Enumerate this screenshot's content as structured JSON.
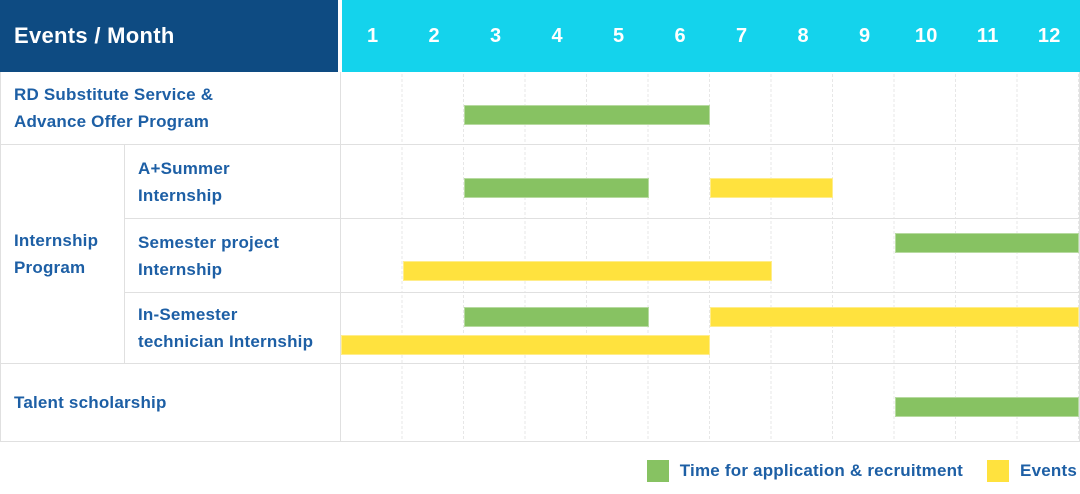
{
  "header": {
    "title": "Events / Month",
    "months": [
      "1",
      "2",
      "3",
      "4",
      "5",
      "6",
      "7",
      "8",
      "9",
      "10",
      "11",
      "12"
    ]
  },
  "colors": {
    "header_bg": "#0e4b82",
    "months_bg": "#14d3ec",
    "application": "#87c262",
    "event": "#ffe23e",
    "label_text": "#1d5fa5",
    "header_text": "#ffffff"
  },
  "legend": {
    "items": [
      {
        "kind": "application",
        "label": "Time for application & recruitment"
      },
      {
        "kind": "event",
        "label": "Events"
      }
    ]
  },
  "chart_data": {
    "type": "gantt",
    "x_axis": {
      "label": "Month",
      "ticks": [
        "1",
        "2",
        "3",
        "4",
        "5",
        "6",
        "7",
        "8",
        "9",
        "10",
        "11",
        "12"
      ],
      "range": [
        1,
        12
      ]
    },
    "legend": {
      "application": "Time for application & recruitment",
      "event": "Events"
    },
    "group_label": "Internship Program",
    "group_label_lines": [
      "Internship",
      "Program"
    ],
    "rows": [
      {
        "label": "RD Substitute Service & Advance Offer Program",
        "label_lines": [
          "RD Substitute Service &",
          "Advance Offer Program"
        ],
        "group": null,
        "bars": [
          {
            "kind": "application",
            "start": 3,
            "end": 6,
            "lane": "single"
          }
        ]
      },
      {
        "label": "A+Summer Internship",
        "label_lines": [
          "A+Summer",
          "Internship"
        ],
        "group": "Internship Program",
        "bars": [
          {
            "kind": "application",
            "start": 3,
            "end": 5,
            "lane": "single"
          },
          {
            "kind": "event",
            "start": 7,
            "end": 8,
            "lane": "single"
          }
        ]
      },
      {
        "label": "Semester project Internship",
        "label_lines": [
          "Semester project",
          "Internship"
        ],
        "group": "Internship Program",
        "bars": [
          {
            "kind": "application",
            "start": 10,
            "end": 12,
            "lane": "top"
          },
          {
            "kind": "event",
            "start": 2,
            "end": 7,
            "lane": "bottom"
          }
        ]
      },
      {
        "label": "In-Semester technician Internship",
        "label_lines": [
          "In-Semester",
          "technician Internship"
        ],
        "group": "Internship Program",
        "bars": [
          {
            "kind": "application",
            "start": 3,
            "end": 5,
            "lane": "top"
          },
          {
            "kind": "event",
            "start": 7,
            "end": 12,
            "lane": "top"
          },
          {
            "kind": "event",
            "start": 1,
            "end": 6,
            "lane": "bottom"
          }
        ]
      },
      {
        "label": "Talent scholarship",
        "label_lines": [
          "Talent scholarship"
        ],
        "group": null,
        "bars": [
          {
            "kind": "application",
            "start": 10,
            "end": 12,
            "lane": "single"
          }
        ]
      }
    ]
  }
}
